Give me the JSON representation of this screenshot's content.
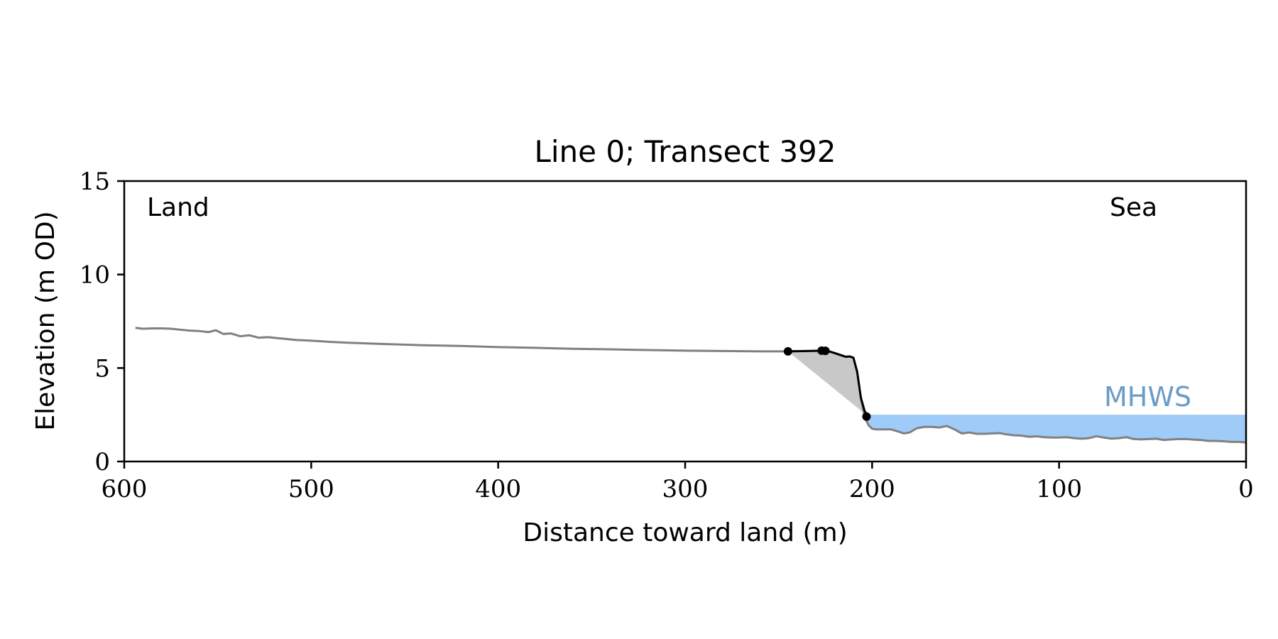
{
  "chart_data": {
    "type": "line",
    "title": "Line 0; Transect 392",
    "xlabel": "Distance toward land (m)",
    "ylabel": "Elevation (m OD)",
    "xlim": [
      600,
      0
    ],
    "ylim": [
      0,
      15
    ],
    "xticks": [
      600,
      500,
      400,
      300,
      200,
      100,
      0
    ],
    "yticks": [
      0,
      5,
      10,
      15
    ],
    "grid": false,
    "annotations": {
      "land": "Land",
      "sea": "Sea",
      "mhws": "MHWS"
    },
    "mhws_level": 2.5,
    "colors": {
      "profile": "#808080",
      "cliff": "#000000",
      "wedge": "#c8c8c8",
      "water": "#9fcbf8",
      "mhws_text": "#6a9cc8"
    },
    "profile": {
      "x": [
        594,
        590,
        585,
        580,
        575,
        570,
        565,
        560,
        555,
        551,
        547,
        543,
        538,
        533,
        528,
        523,
        518,
        513,
        508,
        503,
        498,
        490,
        480,
        460,
        440,
        420,
        400,
        380,
        360,
        340,
        320,
        300,
        280,
        260,
        246,
        240,
        230,
        226,
        224,
        220,
        214,
        212,
        210,
        208,
        206,
        204,
        202,
        200,
        198,
        194,
        190,
        186,
        183,
        180,
        176,
        172,
        168,
        164,
        160,
        156,
        152,
        148,
        144,
        140,
        136,
        132,
        128,
        124,
        120,
        116,
        112,
        108,
        104,
        100,
        96,
        92,
        88,
        84,
        80,
        76,
        72,
        68,
        64,
        60,
        56,
        52,
        48,
        44,
        40,
        36,
        32,
        28,
        24,
        20,
        16,
        12,
        8,
        4,
        0
      ],
      "y": [
        7.15,
        7.1,
        7.12,
        7.12,
        7.1,
        7.05,
        7.0,
        6.98,
        6.92,
        7.02,
        6.82,
        6.85,
        6.7,
        6.75,
        6.62,
        6.65,
        6.6,
        6.55,
        6.5,
        6.48,
        6.45,
        6.4,
        6.35,
        6.28,
        6.22,
        6.18,
        6.12,
        6.08,
        6.03,
        6.0,
        5.96,
        5.93,
        5.91,
        5.89,
        5.89,
        5.9,
        5.92,
        5.93,
        5.92,
        5.8,
        5.6,
        5.62,
        5.55,
        4.8,
        3.4,
        2.4,
        1.95,
        1.75,
        1.72,
        1.72,
        1.72,
        1.6,
        1.5,
        1.55,
        1.78,
        1.85,
        1.85,
        1.82,
        1.9,
        1.72,
        1.5,
        1.55,
        1.48,
        1.48,
        1.5,
        1.52,
        1.45,
        1.4,
        1.38,
        1.32,
        1.35,
        1.3,
        1.28,
        1.28,
        1.3,
        1.25,
        1.22,
        1.25,
        1.35,
        1.28,
        1.22,
        1.25,
        1.3,
        1.2,
        1.18,
        1.2,
        1.22,
        1.15,
        1.18,
        1.2,
        1.2,
        1.17,
        1.15,
        1.1,
        1.1,
        1.08,
        1.05,
        1.05,
        1.02
      ]
    },
    "cliff": {
      "x": [
        245,
        240,
        230,
        226,
        224,
        220,
        214,
        212,
        210,
        208,
        206,
        204,
        202
      ],
      "y": [
        5.89,
        5.9,
        5.92,
        5.93,
        5.92,
        5.8,
        5.6,
        5.62,
        5.55,
        4.8,
        3.4,
        2.7,
        2.4
      ]
    },
    "cliff_points": {
      "x": [
        245,
        227,
        225,
        203
      ],
      "y": [
        5.89,
        5.93,
        5.92,
        2.4
      ]
    },
    "wedge": {
      "x": [
        245,
        203
      ],
      "y": [
        5.89,
        2.4
      ]
    }
  }
}
